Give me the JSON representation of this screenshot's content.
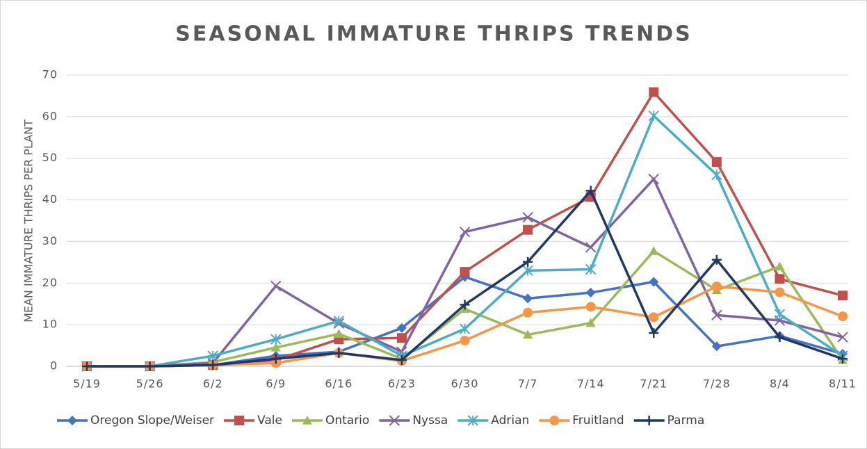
{
  "chart_data": {
    "type": "line",
    "title": "SEASONAL IMMATURE THRIPS TRENDS",
    "y_label": "MEAN IMMATURE THRIPS PER PLANT",
    "categories": [
      "5/19",
      "5/26",
      "6/2",
      "6/9",
      "6/16",
      "6/23",
      "6/30",
      "7/7",
      "7/14",
      "7/21",
      "7/28",
      "8/4",
      "8/11"
    ],
    "ylim": [
      0,
      70
    ],
    "yticks": [
      0,
      10,
      20,
      30,
      40,
      50,
      60,
      70
    ],
    "grid": true,
    "legend": "bottom",
    "series": [
      {
        "name": "Oregon Slope/Weiser",
        "color": "#4472c4",
        "marker": "diamond",
        "values": [
          0,
          0,
          0.3,
          2.5,
          3.5,
          9.2,
          21.5,
          16.3,
          17.7,
          20.3,
          4.8,
          7.3,
          3
        ]
      },
      {
        "name": "Vale",
        "color": "#c0504d",
        "marker": "square",
        "values": [
          0,
          0,
          0.3,
          1.5,
          6.5,
          6.8,
          22.7,
          32.8,
          40.7,
          65.9,
          49.1,
          21,
          17
        ]
      },
      {
        "name": "Ontario",
        "color": "#9bbb59",
        "marker": "triangle",
        "values": [
          0,
          0,
          1,
          4.5,
          7.8,
          1.8,
          13.8,
          7.6,
          10.4,
          27.7,
          18.3,
          24,
          1.5
        ]
      },
      {
        "name": "Nyssa",
        "color": "#8064a2",
        "marker": "x",
        "values": [
          0,
          0,
          0.8,
          19.3,
          10.3,
          3.5,
          32.3,
          35.8,
          28.6,
          45,
          12.3,
          11,
          7
        ]
      },
      {
        "name": "Adrian",
        "color": "#4bacc6",
        "marker": "star",
        "values": [
          0,
          0,
          2.5,
          6.5,
          10.9,
          2.5,
          9,
          23,
          23.3,
          60.2,
          46,
          12.5,
          2.5
        ]
      },
      {
        "name": "Fruitland",
        "color": "#f79646",
        "marker": "circle",
        "values": [
          0,
          0,
          0.3,
          0.8,
          3.2,
          1.3,
          6.2,
          12.9,
          14.3,
          11.8,
          19.2,
          17.8,
          12
        ]
      },
      {
        "name": "Parma",
        "color": "#1f3864",
        "marker": "plus",
        "values": [
          0,
          0,
          0.3,
          1.8,
          3.2,
          1.5,
          14.8,
          25.1,
          42.2,
          8,
          25.6,
          7,
          1.8
        ]
      }
    ]
  }
}
